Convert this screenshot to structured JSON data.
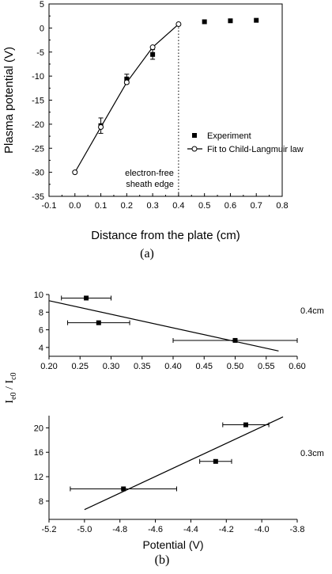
{
  "chart_data": [
    {
      "panel": "(a)",
      "type": "scatter",
      "xlabel": "Distance from the plate (cm)",
      "ylabel": "Plasma potential (V)",
      "xlim": [
        -0.1,
        0.8
      ],
      "ylim": [
        -35,
        5
      ],
      "xticks": [
        "-0.1",
        "0.0",
        "0.1",
        "0.2",
        "0.3",
        "0.4",
        "0.5",
        "0.6",
        "0.7",
        "0.8"
      ],
      "yticks": [
        "5",
        "0",
        "-5",
        "-10",
        "-15",
        "-20",
        "-25",
        "-30",
        "-35"
      ],
      "grid": false,
      "legend_position": "right",
      "series": [
        {
          "name": "Experiment",
          "marker": "filled-square",
          "x": [
            0.1,
            0.2,
            0.3,
            0.5,
            0.6,
            0.7
          ],
          "y": [
            -20.3,
            -10.6,
            -5.5,
            1.3,
            1.5,
            1.6
          ],
          "err": [
            1.6,
            1.0,
            1.0,
            0,
            0,
            0
          ]
        },
        {
          "name": "Fit to Child-Langmuir law",
          "marker": "open-circle-line",
          "x": [
            0.0,
            0.1,
            0.2,
            0.3,
            0.4
          ],
          "y": [
            -30.0,
            -20.6,
            -11.3,
            -4.0,
            0.8
          ]
        }
      ],
      "vline": {
        "x": 0.4,
        "style": "dotted"
      },
      "annotation": [
        "electron-free",
        "sheath edge"
      ]
    },
    {
      "panel": "(b)",
      "type": "scatter",
      "ylabel": "I_e0 / I_c0",
      "subplots": [
        {
          "label": "0.4cm",
          "xlim": [
            0.2,
            0.6
          ],
          "ylim": [
            3,
            10
          ],
          "xticks": [
            "0.20",
            "0.25",
            "0.30",
            "0.35",
            "0.40",
            "0.45",
            "0.50",
            "0.55",
            "0.60"
          ],
          "yticks": [
            "10",
            "8",
            "6",
            "4"
          ],
          "points": {
            "x": [
              0.26,
              0.28,
              0.5
            ],
            "y": [
              9.6,
              6.8,
              4.8
            ],
            "xerr": [
              [
                0.22,
                0.3
              ],
              [
                0.23,
                0.33
              ],
              [
                0.4,
                0.6
              ]
            ]
          },
          "fit_line": {
            "x": [
              0.2,
              0.57
            ],
            "y": [
              9.3,
              3.6
            ]
          }
        },
        {
          "label": "0.3cm",
          "xlabel": "Potential (V)",
          "xlim": [
            -5.2,
            -3.8
          ],
          "ylim": [
            5,
            22
          ],
          "xticks": [
            "-5.2",
            "-5.0",
            "-4.8",
            "-4.6",
            "-4.4",
            "-4.2",
            "-4.0",
            "-3.8"
          ],
          "yticks": [
            "20",
            "16",
            "12",
            "8"
          ],
          "points": {
            "x": [
              -4.78,
              -4.26,
              -4.09
            ],
            "y": [
              10.0,
              14.5,
              20.5
            ],
            "xerr": [
              [
                -5.08,
                -4.48
              ],
              [
                -4.35,
                -4.17
              ],
              [
                -4.22,
                -3.96
              ]
            ]
          },
          "fit_line": {
            "x": [
              -5.0,
              -3.88
            ],
            "y": [
              6.6,
              21.8
            ]
          }
        }
      ]
    }
  ],
  "captions": {
    "a": "(a)",
    "b": "(b)"
  },
  "ylabel_b": {
    "I": "I",
    "e0": "e0",
    "slash": " / I",
    "c0": "c0"
  }
}
